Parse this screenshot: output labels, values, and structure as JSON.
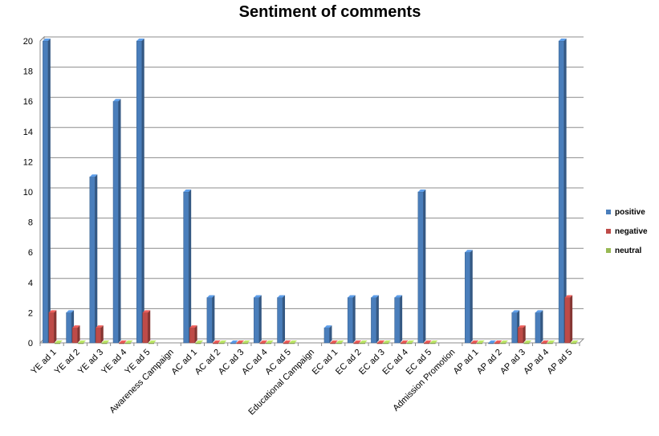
{
  "chart_data": {
    "type": "bar",
    "title": "Sentiment of comments",
    "xlabel": "",
    "ylabel": "",
    "ylim": [
      0,
      20
    ],
    "yticks": [
      0,
      2,
      4,
      6,
      8,
      10,
      12,
      14,
      16,
      18,
      20
    ],
    "grid": true,
    "legend_position": "right",
    "categories": [
      "YE ad 1",
      "YE ad 2",
      "YE ad 3",
      "YE ad 4",
      "YE ad 5",
      "Awareness Campaign",
      "AC ad 1",
      "AC ad 2",
      "AC ad 3",
      "AC ad 4",
      "AC ad 5",
      "Educational Campaign",
      "EC ad 1",
      "EC ad 2",
      "EC ad 3",
      "EC ad 4",
      "EC ad 5",
      "Admission Promotion",
      "AP ad 1",
      "AP ad 2",
      "AP ad 3",
      "AP ad 4",
      "AP ad 5"
    ],
    "series": [
      {
        "name": "positive",
        "color": "#4a7ebb",
        "values": [
          20,
          2,
          11,
          16,
          20,
          null,
          10,
          3,
          0,
          3,
          3,
          null,
          1,
          3,
          3,
          3,
          10,
          null,
          6,
          0,
          2,
          2,
          20
        ]
      },
      {
        "name": "negative",
        "color": "#be4b48",
        "values": [
          2,
          1,
          1,
          0,
          2,
          null,
          1,
          0,
          0,
          0,
          0,
          null,
          0,
          0,
          0,
          0,
          0,
          null,
          0,
          0,
          1,
          0,
          3
        ]
      },
      {
        "name": "neutral",
        "color": "#98b954",
        "values": [
          0,
          0,
          0,
          0,
          0,
          null,
          0,
          0,
          0,
          0,
          0,
          null,
          0,
          0,
          0,
          0,
          0,
          null,
          0,
          0,
          0,
          0,
          0
        ]
      }
    ]
  }
}
